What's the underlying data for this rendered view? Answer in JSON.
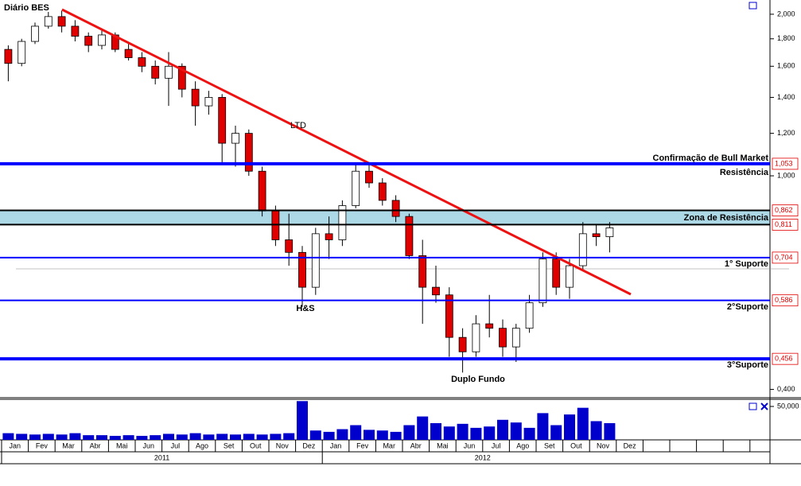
{
  "chart_data": {
    "type": "candlestick",
    "title": "Diário BES",
    "categories": [
      "Jan",
      null,
      "Fev",
      null,
      "Mar",
      null,
      "Abr",
      null,
      "Mai",
      null,
      "Jun",
      null,
      "Jul",
      null,
      "Ago",
      null,
      "Set",
      null,
      "Out",
      null,
      "Nov",
      null,
      "Dez",
      null,
      "Jan",
      null,
      "Fev",
      null,
      "Mar",
      null,
      "Abr",
      null,
      "Mai",
      null,
      "Jun",
      null,
      "Jul",
      null,
      "Ago",
      null,
      "Set",
      null,
      "Out",
      null,
      "Nov",
      null,
      "Dez",
      null
    ],
    "years": [
      "2011",
      "2012"
    ],
    "open": [
      1.72,
      1.62,
      1.78,
      1.9,
      1.98,
      1.9,
      1.82,
      1.75,
      1.83,
      1.72,
      1.66,
      1.6,
      1.52,
      1.6,
      1.45,
      1.35,
      1.4,
      1.15,
      1.2,
      1.02,
      0.86,
      0.76,
      0.72,
      0.62,
      0.78,
      0.76,
      0.88,
      1.02,
      0.97,
      0.9,
      0.84,
      0.71,
      0.62,
      0.6,
      0.5,
      0.47,
      0.53,
      0.52,
      0.48,
      0.52,
      0.58,
      0.7,
      0.62,
      0.68,
      0.78,
      0.77,
      null,
      null
    ],
    "high": [
      1.75,
      1.8,
      1.93,
      2.02,
      2.03,
      1.95,
      1.85,
      1.88,
      1.85,
      1.76,
      1.7,
      1.64,
      1.7,
      1.62,
      1.5,
      1.44,
      1.42,
      1.24,
      1.22,
      1.04,
      0.88,
      0.85,
      0.74,
      0.8,
      0.84,
      0.9,
      1.06,
      1.06,
      0.99,
      0.92,
      0.85,
      0.76,
      0.68,
      0.62,
      0.52,
      0.55,
      0.6,
      0.54,
      0.53,
      0.6,
      0.72,
      0.72,
      0.7,
      0.82,
      0.81,
      0.82,
      null,
      null
    ],
    "low": [
      1.5,
      1.6,
      1.76,
      1.88,
      1.85,
      1.78,
      1.7,
      1.72,
      1.7,
      1.64,
      1.56,
      1.48,
      1.35,
      1.4,
      1.24,
      1.3,
      1.06,
      1.04,
      1.0,
      0.84,
      0.74,
      0.68,
      0.57,
      0.6,
      0.7,
      0.74,
      0.87,
      0.95,
      0.88,
      0.82,
      0.7,
      0.53,
      0.58,
      0.46,
      0.43,
      0.46,
      0.5,
      0.46,
      0.45,
      0.51,
      0.57,
      0.6,
      0.59,
      0.67,
      0.74,
      0.72,
      null,
      null
    ],
    "close": [
      1.62,
      1.78,
      1.9,
      1.98,
      1.9,
      1.82,
      1.75,
      1.83,
      1.72,
      1.66,
      1.6,
      1.52,
      1.6,
      1.45,
      1.35,
      1.4,
      1.15,
      1.2,
      1.02,
      0.86,
      0.76,
      0.72,
      0.62,
      0.78,
      0.76,
      0.88,
      1.02,
      0.97,
      0.9,
      0.84,
      0.71,
      0.62,
      0.6,
      0.5,
      0.47,
      0.53,
      0.52,
      0.48,
      0.52,
      0.58,
      0.7,
      0.62,
      0.68,
      0.78,
      0.77,
      0.8,
      null,
      null
    ],
    "up_color": "#000000",
    "down_color": "#e00000",
    "log_scale": true,
    "ylim": [
      0.386,
      2.126
    ],
    "yticks": [
      {
        "value": 0.4,
        "label": "0,400"
      },
      {
        "value": 1,
        "label": "1,000"
      },
      {
        "value": 1.2,
        "label": "1,200"
      },
      {
        "value": 1.4,
        "label": "1,400"
      },
      {
        "value": 1.6,
        "label": "1,600"
      },
      {
        "value": 1.8,
        "label": "1,800"
      },
      {
        "value": 2,
        "label": "2,000"
      }
    ],
    "levels": [
      {
        "value": 1.053,
        "label": "1,053",
        "color": "#0000ff",
        "width": 4
      },
      {
        "value": 0.862,
        "label": "0,862",
        "color": "#000000",
        "width": 2
      },
      {
        "value": 0.811,
        "label": "0,811",
        "color": "#000000",
        "width": 2
      },
      {
        "value": 0.704,
        "label": "0,704",
        "color": "#0000ff",
        "width": 2
      },
      {
        "value": 0.586,
        "label": "0,586",
        "color": "#0000ff",
        "width": 2
      },
      {
        "value": 0.456,
        "label": "0,456",
        "color": "#0000ff",
        "width": 4
      }
    ],
    "zone": {
      "label": "Zona de Resistência",
      "color": "#add8e6"
    },
    "annotations": {
      "trendline": "LTD",
      "pattern": "H&S",
      "bottom": "Duplo Fundo",
      "bull": "Confirmação de Bull Market",
      "resistance": "Resistência",
      "support1": "1° Suporte",
      "support2": "2°Suporte",
      "support3": "3°Suporte"
    },
    "volume": {
      "color": "#0000cc",
      "values": [
        10000,
        9000,
        8000,
        9000,
        8000,
        10000,
        7000,
        7000,
        6000,
        7000,
        6000,
        7000,
        9000,
        8000,
        10000,
        8000,
        9000,
        8000,
        9000,
        8000,
        9000,
        10000,
        58000,
        14000,
        12000,
        16000,
        22000,
        15000,
        14000,
        12000,
        22000,
        35000,
        25000,
        20000,
        24000,
        18000,
        20000,
        30000,
        26000,
        18000,
        40000,
        22000,
        38000,
        48000,
        28000,
        25000,
        null,
        null
      ],
      "ylim": [
        0,
        60700
      ],
      "yticks": [
        {
          "value": 50000,
          "label": "50,000"
        }
      ]
    }
  }
}
